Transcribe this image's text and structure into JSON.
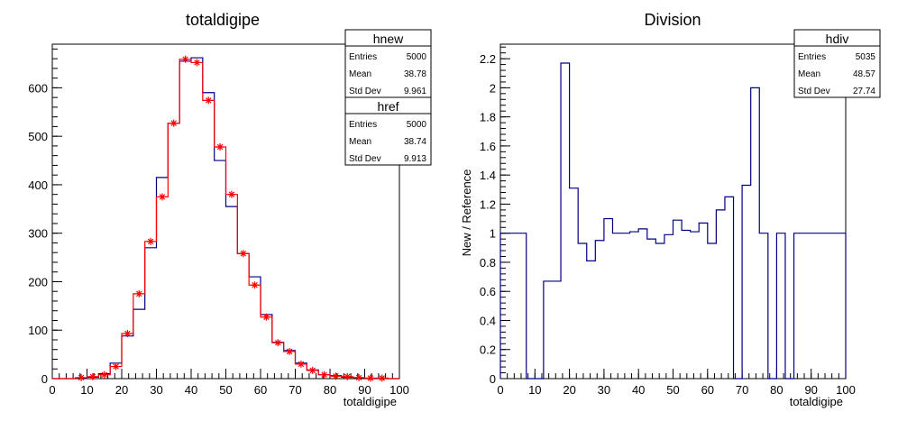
{
  "chart_data": [
    {
      "type": "bar",
      "title": "totaldigipe",
      "xlabel": "totaldigipe",
      "ylabel": "",
      "xlim": [
        0,
        100
      ],
      "ylim": [
        0,
        690
      ],
      "bin_width": 3.333,
      "xticks": [
        0,
        10,
        20,
        30,
        40,
        50,
        60,
        70,
        80,
        90,
        100
      ],
      "xtick_labels": [
        "0",
        "10",
        "20",
        "30",
        "40",
        "50",
        "60",
        "70",
        "80",
        "90",
        "100"
      ],
      "yticks": [
        0,
        100,
        200,
        300,
        400,
        500,
        600
      ],
      "ytick_labels": [
        "0",
        "100",
        "200",
        "300",
        "400",
        "500",
        "600"
      ],
      "series": [
        {
          "name": "hnew",
          "color": "#000080",
          "style": "step",
          "values": [
            0,
            0,
            1,
            3,
            10,
            32,
            88,
            143,
            270,
            415,
            527,
            655,
            662,
            590,
            450,
            355,
            258,
            210,
            132,
            75,
            58,
            32,
            18,
            8,
            6,
            3,
            2,
            1,
            1,
            0
          ]
        },
        {
          "name": "href",
          "color": "#ff0000",
          "style": "step-markers",
          "values": [
            0,
            0,
            2,
            4,
            8,
            25,
            93,
            175,
            283,
            375,
            527,
            659,
            652,
            574,
            478,
            380,
            258,
            193,
            127,
            74,
            56,
            30,
            17,
            8,
            5,
            4,
            2,
            1,
            1,
            0
          ]
        }
      ],
      "stats": [
        {
          "name": "hnew",
          "rows": [
            [
              "Entries",
              "5000"
            ],
            [
              "Mean",
              "38.78"
            ],
            [
              "Std Dev",
              "9.961"
            ]
          ]
        },
        {
          "name": "href",
          "rows": [
            [
              "Entries",
              "5000"
            ],
            [
              "Mean",
              "38.74"
            ],
            [
              "Std Dev",
              "9.913"
            ]
          ]
        }
      ]
    },
    {
      "type": "bar",
      "title": "Division",
      "xlabel": "totaldigipe",
      "ylabel": "New / Reference",
      "xlim": [
        0,
        100
      ],
      "ylim": [
        0,
        2.3
      ],
      "bin_width": 2.5,
      "xticks": [
        0,
        10,
        20,
        30,
        40,
        50,
        60,
        70,
        80,
        90,
        100
      ],
      "xtick_labels": [
        "0",
        "10",
        "20",
        "30",
        "40",
        "50",
        "60",
        "70",
        "80",
        "90",
        "100"
      ],
      "yticks": [
        0,
        0.2,
        0.4,
        0.6,
        0.8,
        1,
        1.2,
        1.4,
        1.6,
        1.8,
        2,
        2.2
      ],
      "ytick_labels": [
        "0",
        "0.2",
        "0.4",
        "0.6",
        "0.8",
        "1",
        "1.2",
        "1.4",
        "1.6",
        "1.8",
        "2",
        "2.2"
      ],
      "series": [
        {
          "name": "hdiv",
          "color": "#000080",
          "style": "step",
          "values": [
            1.0,
            1.0,
            1.0,
            0,
            0,
            0.67,
            0.67,
            2.17,
            1.31,
            0.93,
            0.81,
            0.95,
            1.1,
            1.0,
            1.0,
            1.01,
            1.03,
            0.96,
            0.93,
            0.99,
            1.09,
            1.02,
            1.01,
            1.07,
            0.93,
            1.16,
            1.25,
            0,
            1.33,
            2.0,
            1.0,
            0,
            1.0,
            0,
            1.0,
            1.0,
            1.0,
            1.0,
            1.0,
            1.0
          ]
        }
      ],
      "stats": [
        {
          "name": "hdiv",
          "rows": [
            [
              "Entries",
              "5035"
            ],
            [
              "Mean",
              "48.57"
            ],
            [
              "Std Dev",
              "27.74"
            ]
          ]
        }
      ]
    }
  ]
}
